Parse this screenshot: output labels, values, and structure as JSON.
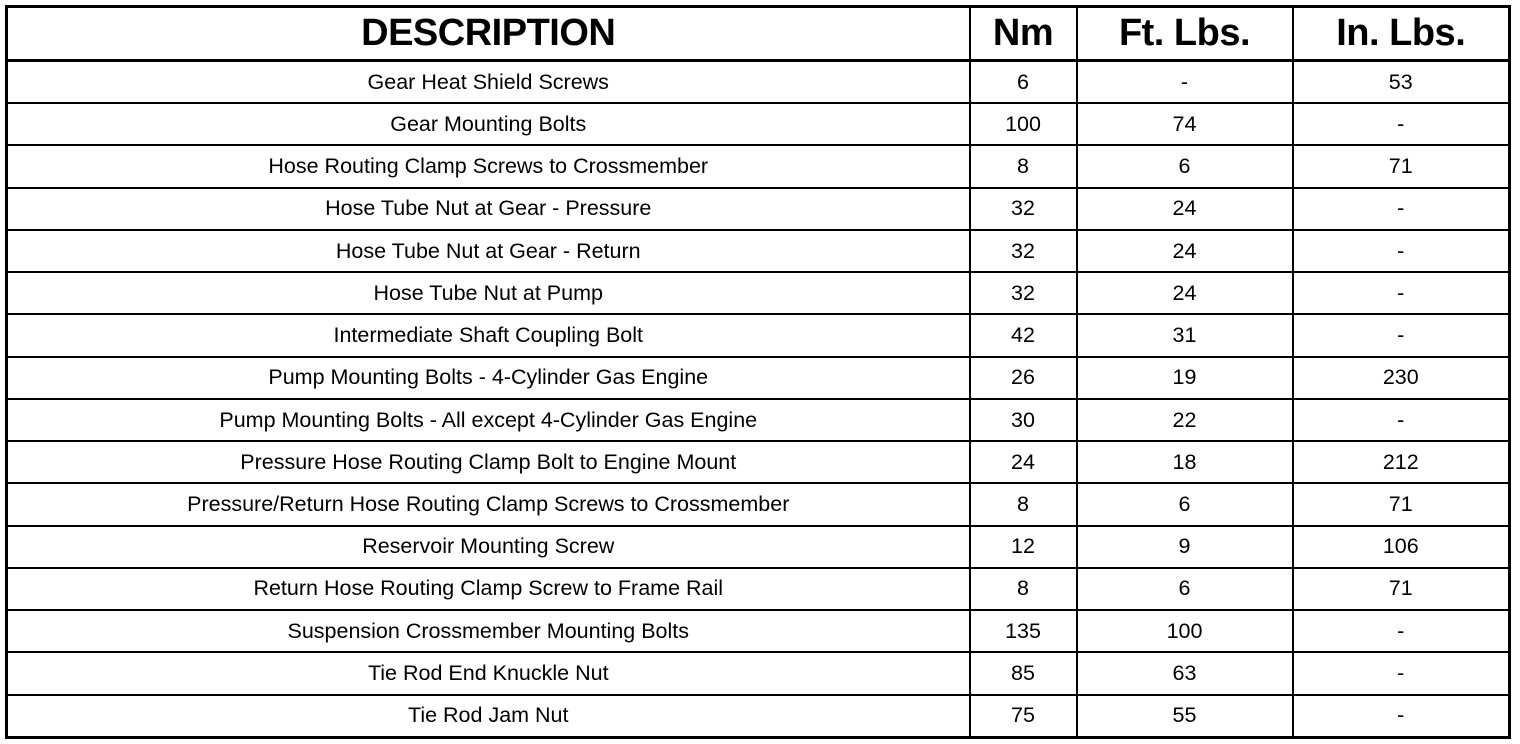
{
  "headers": [
    "DESCRIPTION",
    "Nm",
    "Ft. Lbs.",
    "In. Lbs."
  ],
  "rows": [
    [
      "Gear Heat Shield Screws",
      "6",
      "-",
      "53"
    ],
    [
      "Gear Mounting Bolts",
      "100",
      "74",
      "-"
    ],
    [
      "Hose Routing Clamp Screws to Crossmember",
      "8",
      "6",
      "71"
    ],
    [
      "Hose Tube Nut at Gear - Pressure",
      "32",
      "24",
      "-"
    ],
    [
      "Hose Tube Nut at Gear - Return",
      "32",
      "24",
      "-"
    ],
    [
      "Hose Tube Nut at Pump",
      "32",
      "24",
      "-"
    ],
    [
      "Intermediate Shaft Coupling Bolt",
      "42",
      "31",
      "-"
    ],
    [
      "Pump Mounting Bolts - 4-Cylinder Gas Engine",
      "26",
      "19",
      "230"
    ],
    [
      "Pump Mounting Bolts - All except 4-Cylinder Gas Engine",
      "30",
      "22",
      "-"
    ],
    [
      "Pressure Hose Routing Clamp Bolt to Engine Mount",
      "24",
      "18",
      "212"
    ],
    [
      "Pressure/Return Hose Routing Clamp Screws to Crossmember",
      "8",
      "6",
      "71"
    ],
    [
      "Reservoir Mounting Screw",
      "12",
      "9",
      "106"
    ],
    [
      "Return Hose Routing Clamp Screw to Frame Rail",
      "8",
      "6",
      "71"
    ],
    [
      "Suspension Crossmember Mounting Bolts",
      "135",
      "100",
      "-"
    ],
    [
      "Tie Rod End Knuckle Nut",
      "85",
      "63",
      "-"
    ],
    [
      "Tie Rod Jam Nut",
      "75",
      "55",
      "-"
    ]
  ]
}
